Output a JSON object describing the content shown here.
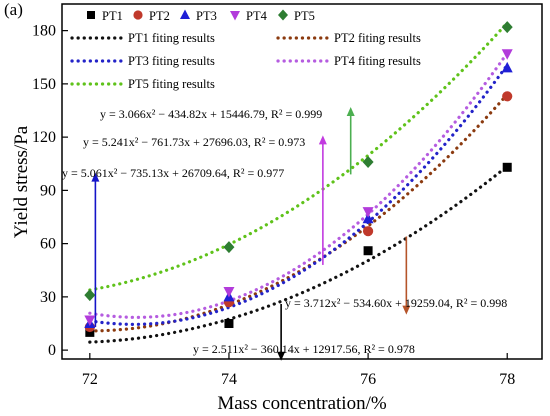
{
  "chart_data": {
    "type": "scatter",
    "panel_label": "(a)",
    "xlabel": "Mass concentration/%",
    "ylabel": "Yield stress/Pa",
    "xlim": [
      71.6,
      78.5
    ],
    "ylim": [
      -5,
      195
    ],
    "xticks": [
      72,
      74,
      76,
      78
    ],
    "yticks": [
      0,
      30,
      60,
      90,
      120,
      150,
      180
    ],
    "grid": false,
    "legend_position": "top",
    "x": [
      72,
      74,
      76,
      78
    ],
    "series": [
      {
        "name": "PT1",
        "marker": "square",
        "color": "#000000",
        "values": [
          10,
          15,
          56,
          103
        ]
      },
      {
        "name": "PT2",
        "marker": "circle",
        "color": "#c0392b",
        "values": [
          13,
          27,
          67,
          143
        ]
      },
      {
        "name": "PT3",
        "marker": "triangle-up",
        "color": "#1f1fd6",
        "values": [
          15,
          30,
          74,
          159
        ]
      },
      {
        "name": "PT4",
        "marker": "triangle-down",
        "color": "#b23bdb",
        "values": [
          17,
          33,
          78,
          167
        ]
      },
      {
        "name": "PT5",
        "marker": "diamond",
        "color": "#2e7d32",
        "values": [
          31,
          58,
          106,
          182
        ]
      }
    ],
    "fits": [
      {
        "name": "PT1 fiting results",
        "color": "#111111",
        "a": 2.511,
        "b": -360.14,
        "c": 12917.56,
        "equation": "y = 2.511x² − 360.14x + 12917.56, R² = 0.978"
      },
      {
        "name": "PT2 fiting results",
        "color": "#8b3a0f",
        "a": 3.712,
        "b": -534.6,
        "c": 19259.04,
        "equation": "y = 3.712x² − 534.60x + 19259.04, R² = 0.998"
      },
      {
        "name": "PT3 fiting results",
        "color": "#2323c8",
        "a": 5.061,
        "b": -735.13,
        "c": 26709.64,
        "equation": "y = 5.061x² − 735.13x + 26709.64, R² = 0.977"
      },
      {
        "name": "PT4 fiting results",
        "color": "#b55ce0",
        "a": 5.241,
        "b": -761.73,
        "c": 27696.03,
        "equation": "y = 5.241x² − 761.73x + 27696.03, R² = 0.973"
      },
      {
        "name": "PT5 fiting results",
        "color": "#5fc21a",
        "a": 3.066,
        "b": -434.82,
        "c": 15446.79,
        "equation": "y = 3.066x² − 434.82x + 15446.79, R² = 0.999"
      }
    ],
    "arrows": [
      {
        "fit": "PT1 fiting results",
        "color": "#000000",
        "x": 74.75,
        "y_from": 26,
        "y_to": -6
      },
      {
        "fit": "PT2 fiting results",
        "color": "#b5542a",
        "x": 76.55,
        "y_from": 64,
        "y_to": 20
      },
      {
        "fit": "PT3 fiting results",
        "color": "#1414c8",
        "x": 72.08,
        "y_from": 13,
        "y_to": 100
      },
      {
        "fit": "PT4 fiting results",
        "color": "#c23ae0",
        "x": 75.35,
        "y_from": 48,
        "y_to": 121
      },
      {
        "fit": "PT5 fiting results",
        "color": "#4caf50",
        "x": 75.75,
        "y_from": 99,
        "y_to": 137
      }
    ]
  }
}
